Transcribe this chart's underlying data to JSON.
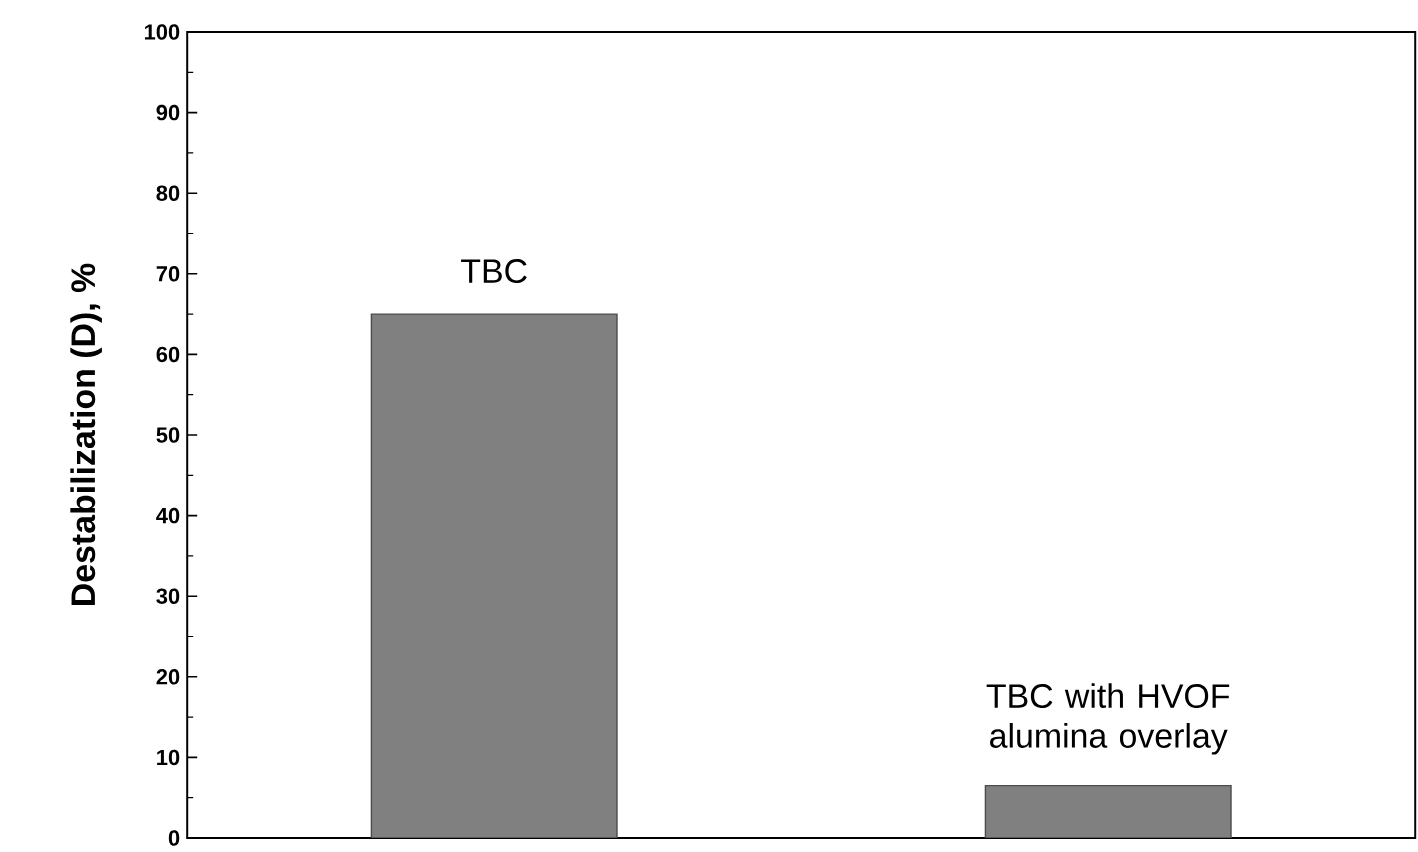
{
  "chart_data": {
    "type": "bar",
    "ylabel": "Destabilization (D), %",
    "categories": [
      "TBC",
      "TBC with HVOF alumina overlay"
    ],
    "values": [
      65,
      6.5
    ],
    "color": "#808080",
    "ylim": [
      0,
      100
    ],
    "yticks": [
      0,
      10,
      20,
      30,
      40,
      50,
      60,
      70,
      80,
      90,
      100
    ],
    "tick_labels": "y"
  }
}
